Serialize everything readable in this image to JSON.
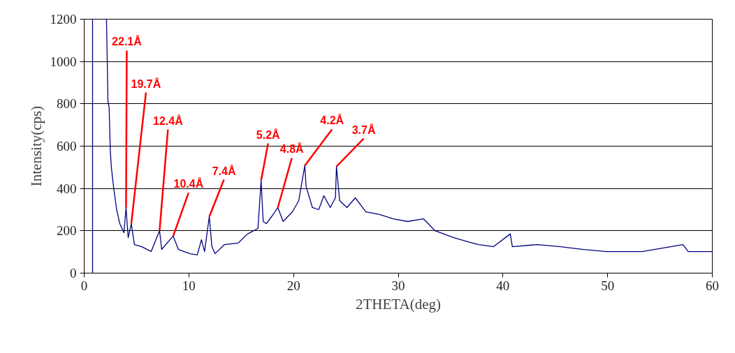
{
  "chart_data": {
    "type": "line",
    "xlabel": "2THETA(deg)",
    "ylabel": "Intensity(cps)",
    "xlim": [
      0,
      60
    ],
    "ylim": [
      0,
      1200
    ],
    "xticks": [
      0,
      10,
      20,
      30,
      40,
      50,
      60
    ],
    "yticks": [
      0,
      200,
      400,
      600,
      800,
      1000,
      1200
    ],
    "grid": "y",
    "marker": "none",
    "line_style": "solid",
    "series": [
      {
        "color": "#000080",
        "x": [
          0.8,
          0.8,
          null,
          2.13,
          2.2,
          2.27,
          2.38,
          2.5,
          2.6,
          2.8,
          3.1,
          3.4,
          3.8,
          4.0,
          4.2,
          4.5,
          4.8,
          5.5,
          6.4,
          7.2,
          7.4,
          8.5,
          9.0,
          10.1,
          10.8,
          11.2,
          11.5,
          11.95,
          12.2,
          12.5,
          13.4,
          14.7,
          15.6,
          16.6,
          16.9,
          17.1,
          17.4,
          17.9,
          18.5,
          19.0,
          19.9,
          20.5,
          21.07,
          21.2,
          21.8,
          22.4,
          22.9,
          23.5,
          24.0,
          24.1,
          24.4,
          25.1,
          25.9,
          26.9,
          28.2,
          29.5,
          30.9,
          32.4,
          33.5,
          35.3,
          36.9,
          37.7,
          39.1,
          40.7,
          40.9,
          43.3,
          45.5,
          47.7,
          49.9,
          53.3,
          57.2,
          57.7,
          60
        ],
        "values": [
          0,
          1200,
          null,
          1200,
          1009,
          811,
          785,
          574,
          498,
          409,
          300,
          234,
          191,
          310,
          168,
          234,
          135,
          125,
          102,
          201,
          112,
          175,
          112,
          92,
          86,
          158,
          102,
          267,
          125,
          92,
          135,
          142,
          185,
          211,
          438,
          244,
          234,
          267,
          310,
          244,
          290,
          343,
          508,
          409,
          310,
          300,
          366,
          310,
          356,
          504,
          343,
          310,
          356,
          290,
          277,
          257,
          244,
          257,
          201,
          168,
          145,
          135,
          125,
          185,
          125,
          135,
          125,
          112,
          102,
          102,
          135,
          102,
          102
        ]
      }
    ],
    "annotations": [
      {
        "text": "22.1Å",
        "x": 4.0,
        "y": 310
      },
      {
        "text": "19.7Å",
        "x": 4.5,
        "y": 234
      },
      {
        "text": "12.4Å",
        "x": 7.2,
        "y": 201
      },
      {
        "text": "10.4Å",
        "x": 8.5,
        "y": 175
      },
      {
        "text": "7.4Å",
        "x": 11.95,
        "y": 267
      },
      {
        "text": "5.2Å",
        "x": 16.9,
        "y": 438
      },
      {
        "text": "4.8Å",
        "x": 18.5,
        "y": 310
      },
      {
        "text": "4.2Å",
        "x": 21.07,
        "y": 508
      },
      {
        "text": "3.7Å",
        "x": 24.1,
        "y": 504
      }
    ]
  }
}
